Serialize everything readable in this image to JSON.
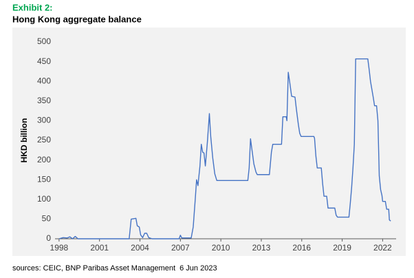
{
  "chart_data": {
    "type": "line",
    "title": "Exhibit 2:",
    "subtitle": "Hong Kong aggregate balance",
    "y_label": "HKD billion",
    "source": "sources: CEIC, BNP Paribas Asset Management  6 Jun 2023",
    "xlim": [
      1997.7,
      2023.0
    ],
    "xticks": [
      1998,
      2001,
      2004,
      2007,
      2010,
      2013,
      2016,
      2019,
      2022
    ],
    "ylim": [
      0,
      500
    ],
    "yticks": [
      0,
      50,
      100,
      150,
      200,
      250,
      300,
      350,
      400,
      450,
      500
    ],
    "grid": false,
    "series": [
      {
        "color": "#4472c4",
        "x": [
          1998,
          1998.3,
          1998.6,
          1998.8,
          1999.0,
          1999.2,
          1999.4,
          2003.2,
          2003.35,
          2003.7,
          2003.8,
          2003.95,
          2004.05,
          2004.2,
          2004.35,
          2004.5,
          2004.65,
          2004.9,
          2006.9,
          2007.0,
          2007.1,
          2007.8,
          2007.95,
          2008.1,
          2008.2,
          2008.3,
          2008.45,
          2008.55,
          2008.65,
          2008.75,
          2008.85,
          2009.0,
          2009.15,
          2009.25,
          2009.4,
          2009.55,
          2009.7,
          2012.0,
          2012.1,
          2012.2,
          2012.3,
          2012.45,
          2012.6,
          2012.7,
          2013.6,
          2013.75,
          2013.85,
          2014.5,
          2014.6,
          2014.85,
          2014.9,
          2015.0,
          2015.1,
          2015.25,
          2015.5,
          2015.6,
          2015.75,
          2015.85,
          2015.95,
          2016.9,
          2016.95,
          2017.05,
          2017.15,
          2017.45,
          2017.55,
          2017.65,
          2017.85,
          2017.95,
          2018.45,
          2018.55,
          2018.65,
          2019.5,
          2019.6,
          2019.7,
          2019.8,
          2019.9,
          2020.0,
          2020.9,
          2021.0,
          2021.1,
          2021.3,
          2021.4,
          2021.55,
          2021.65,
          2021.75,
          2021.85,
          2021.95,
          2022.0,
          2022.2,
          2022.3,
          2022.45,
          2022.5,
          2022.6
        ],
        "values": [
          0,
          3,
          2,
          5,
          0,
          6,
          0,
          0,
          50,
          52,
          33,
          30,
          10,
          3,
          14,
          14,
          3,
          0,
          0,
          9,
          2,
          2,
          30,
          100,
          150,
          135,
          185,
          240,
          220,
          218,
          185,
          245,
          318,
          260,
          205,
          165,
          148,
          148,
          180,
          254,
          228,
          190,
          170,
          163,
          163,
          220,
          240,
          240,
          310,
          310,
          300,
          423,
          400,
          362,
          360,
          330,
          290,
          268,
          260,
          260,
          255,
          210,
          180,
          180,
          140,
          108,
          108,
          78,
          78,
          60,
          55,
          55,
          90,
          130,
          180,
          240,
          457,
          457,
          430,
          400,
          360,
          338,
          338,
          300,
          160,
          125,
          110,
          95,
          95,
          75,
          75,
          48,
          45
        ]
      }
    ]
  }
}
